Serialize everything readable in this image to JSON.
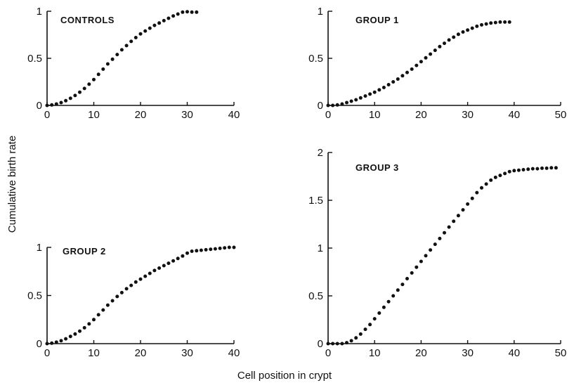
{
  "figure": {
    "ylabel": "Cumulative birth rate",
    "xlabel": "Cell position in crypt"
  },
  "chart_data": [
    {
      "type": "scatter",
      "title": "CONTROLS",
      "xlim": [
        0,
        40
      ],
      "ylim": [
        0,
        1
      ],
      "xticks": [
        0,
        10,
        20,
        30,
        40
      ],
      "yticks": [
        0,
        0.5,
        1
      ],
      "ytick_labels": [
        "0",
        "0.5",
        "1"
      ],
      "series": [
        {
          "x": [
            0,
            1,
            2,
            3,
            4,
            5,
            6,
            7,
            8,
            9,
            10,
            11,
            12,
            13,
            14,
            15,
            16,
            17,
            18,
            19,
            20,
            21,
            22,
            23,
            24,
            25,
            26,
            27,
            28,
            29,
            30,
            31,
            32
          ],
          "y": [
            0,
            0.005,
            0.015,
            0.03,
            0.05,
            0.075,
            0.105,
            0.14,
            0.18,
            0.225,
            0.275,
            0.33,
            0.385,
            0.44,
            0.49,
            0.54,
            0.59,
            0.635,
            0.68,
            0.72,
            0.76,
            0.79,
            0.82,
            0.85,
            0.875,
            0.9,
            0.925,
            0.95,
            0.97,
            0.99,
            0.995,
            0.99,
            0.99
          ]
        }
      ]
    },
    {
      "type": "scatter",
      "title": "GROUP 1",
      "xlim": [
        0,
        50
      ],
      "ylim": [
        0,
        1
      ],
      "xticks": [
        0,
        10,
        20,
        30,
        40,
        50
      ],
      "yticks": [
        0,
        0.5,
        1
      ],
      "ytick_labels": [
        "0",
        "0.5",
        "1"
      ],
      "series": [
        {
          "x": [
            0,
            1,
            2,
            3,
            4,
            5,
            6,
            7,
            8,
            9,
            10,
            11,
            12,
            13,
            14,
            15,
            16,
            17,
            18,
            19,
            20,
            21,
            22,
            23,
            24,
            25,
            26,
            27,
            28,
            29,
            30,
            31,
            32,
            33,
            34,
            35,
            36,
            37,
            38,
            39
          ],
          "y": [
            0,
            0,
            0.005,
            0.015,
            0.03,
            0.045,
            0.06,
            0.08,
            0.1,
            0.12,
            0.14,
            0.165,
            0.19,
            0.22,
            0.25,
            0.28,
            0.315,
            0.35,
            0.385,
            0.425,
            0.465,
            0.505,
            0.545,
            0.585,
            0.625,
            0.66,
            0.695,
            0.725,
            0.755,
            0.78,
            0.8,
            0.82,
            0.84,
            0.855,
            0.865,
            0.875,
            0.88,
            0.885,
            0.885,
            0.885
          ]
        }
      ]
    },
    {
      "type": "scatter",
      "title": "GROUP 2",
      "xlim": [
        0,
        40
      ],
      "ylim": [
        0,
        1
      ],
      "xticks": [
        0,
        10,
        20,
        30,
        40
      ],
      "yticks": [
        0,
        0.5,
        1
      ],
      "ytick_labels": [
        "0",
        "0.5",
        "1"
      ],
      "series": [
        {
          "x": [
            0,
            1,
            2,
            3,
            4,
            5,
            6,
            7,
            8,
            9,
            10,
            11,
            12,
            13,
            14,
            15,
            16,
            17,
            18,
            19,
            20,
            21,
            22,
            23,
            24,
            25,
            26,
            27,
            28,
            29,
            30,
            31,
            32,
            33,
            34,
            35,
            36,
            37,
            38,
            39,
            40
          ],
          "y": [
            0,
            0.005,
            0.015,
            0.03,
            0.05,
            0.075,
            0.1,
            0.13,
            0.165,
            0.205,
            0.25,
            0.3,
            0.35,
            0.4,
            0.445,
            0.49,
            0.53,
            0.57,
            0.605,
            0.64,
            0.67,
            0.7,
            0.73,
            0.76,
            0.785,
            0.81,
            0.835,
            0.86,
            0.885,
            0.91,
            0.94,
            0.96,
            0.965,
            0.97,
            0.975,
            0.98,
            0.985,
            0.99,
            0.995,
            1.0,
            1.0
          ]
        }
      ]
    },
    {
      "type": "scatter",
      "title": "GROUP 3",
      "xlim": [
        0,
        50
      ],
      "ylim": [
        0,
        2
      ],
      "xticks": [
        0,
        10,
        20,
        30,
        40,
        50
      ],
      "yticks": [
        0,
        0.5,
        1,
        1.5,
        2
      ],
      "ytick_labels": [
        "0",
        "0.5",
        "1",
        "1.5",
        "2"
      ],
      "series": [
        {
          "x": [
            0,
            1,
            2,
            3,
            4,
            5,
            6,
            7,
            8,
            9,
            10,
            11,
            12,
            13,
            14,
            15,
            16,
            17,
            18,
            19,
            20,
            21,
            22,
            23,
            24,
            25,
            26,
            27,
            28,
            29,
            30,
            31,
            32,
            33,
            34,
            35,
            36,
            37,
            38,
            39,
            40,
            41,
            42,
            43,
            44,
            45,
            46,
            47,
            48,
            49
          ],
          "y": [
            0,
            0,
            0,
            0,
            0.01,
            0.03,
            0.06,
            0.1,
            0.15,
            0.2,
            0.26,
            0.32,
            0.38,
            0.44,
            0.5,
            0.56,
            0.62,
            0.68,
            0.74,
            0.8,
            0.86,
            0.92,
            0.98,
            1.04,
            1.1,
            1.16,
            1.22,
            1.28,
            1.34,
            1.4,
            1.46,
            1.52,
            1.58,
            1.63,
            1.67,
            1.71,
            1.74,
            1.76,
            1.78,
            1.8,
            1.81,
            1.815,
            1.82,
            1.825,
            1.83,
            1.83,
            1.835,
            1.835,
            1.84,
            1.84
          ]
        }
      ]
    }
  ]
}
